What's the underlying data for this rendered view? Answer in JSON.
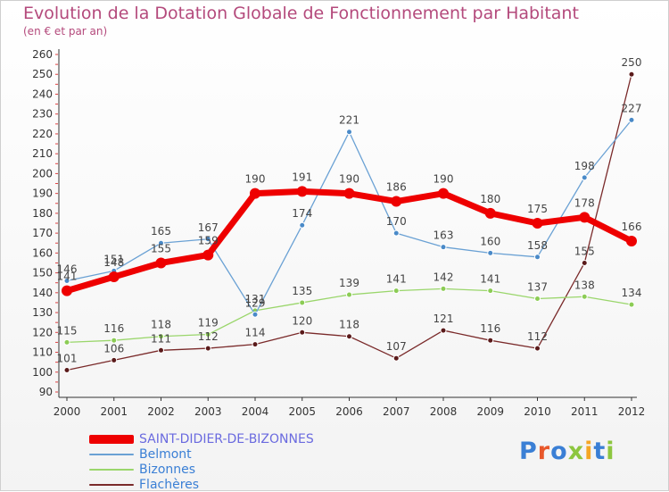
{
  "title": "Evolution de la Dotation Globale de Fonctionnement par Habitant",
  "subtitle": "(en € et par an)",
  "logo": {
    "text": "Proxiti",
    "letter_colors": [
      "#3a7fd5",
      "#e8572a",
      "#3a7fd5",
      "#8dc63f",
      "#f5a623",
      "#3a7fd5",
      "#8dc63f"
    ]
  },
  "chart_data": {
    "type": "line",
    "x": [
      "2000",
      "2001",
      "2002",
      "2003",
      "2004",
      "2005",
      "2006",
      "2007",
      "2008",
      "2009",
      "2010",
      "2011",
      "2012"
    ],
    "ylim": [
      90,
      260
    ],
    "yticks": [
      90,
      100,
      110,
      120,
      130,
      140,
      150,
      160,
      170,
      180,
      190,
      200,
      210,
      220,
      230,
      240,
      250,
      260
    ],
    "grid": false,
    "legend_position": "bottom-left",
    "series": [
      {
        "name": "SAINT-DIDIER-DE-BIZONNES",
        "color": "#ee0000",
        "values": [
          141,
          148,
          155,
          159,
          190,
          191,
          190,
          186,
          190,
          180,
          175,
          178,
          166
        ],
        "labels": [
          "141",
          "148",
          "155",
          "159",
          "190",
          "191",
          "190",
          "186",
          "190",
          "180",
          "175",
          "178",
          "166"
        ]
      },
      {
        "name": "Belmont",
        "color": "#6aa1d4",
        "values": [
          146,
          151,
          165,
          167,
          129,
          174,
          221,
          170,
          163,
          160,
          158,
          198,
          227
        ],
        "labels": [
          "146",
          "151",
          "165",
          "167",
          "129",
          "174",
          "221",
          "170",
          "163",
          "160",
          "158",
          "198",
          "227"
        ]
      },
      {
        "name": "Bizonnes",
        "color": "#9ad66b",
        "values": [
          115,
          116,
          118,
          119,
          131,
          135,
          139,
          141,
          142,
          141,
          137,
          138,
          134
        ],
        "labels": [
          "115",
          "116",
          "118",
          "119",
          "131",
          "135",
          "139",
          "141",
          "142",
          "141",
          "137",
          "138",
          "134"
        ]
      },
      {
        "name": "Flachères",
        "color": "#7a2a2a",
        "values": [
          101,
          106,
          111,
          112,
          114,
          120,
          118,
          107,
          121,
          116,
          112,
          155,
          250
        ],
        "labels": [
          "101",
          "106",
          "111",
          "112",
          "114",
          "120",
          "118",
          "107",
          "121",
          "116",
          "112",
          "155",
          "250"
        ]
      }
    ]
  }
}
